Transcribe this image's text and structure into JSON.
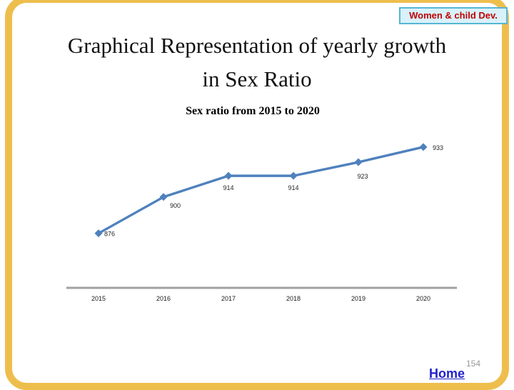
{
  "badge": {
    "label": "Women & child Dev."
  },
  "title": {
    "line1": "Graphical Representation of yearly growth",
    "line2": "in Sex Ratio"
  },
  "chart_data": {
    "type": "line",
    "title": "Sex ratio from 2015 to 2020",
    "categories": [
      "2015",
      "2016",
      "2017",
      "2018",
      "2019",
      "2020"
    ],
    "series": [
      {
        "name": "Sex ratio",
        "values": [
          876,
          900,
          914,
          914,
          923,
          933
        ]
      }
    ],
    "data_labels": [
      "876",
      "900",
      "914",
      "914",
      "923",
      "933"
    ],
    "xlabel": "",
    "ylabel": "",
    "ylim": [
      840,
      940
    ],
    "grid": false,
    "legend": "none",
    "marker": "diamond",
    "line_color": "#4F81BD",
    "axis_color": "#A0A0A0",
    "label_color": "#262626"
  },
  "footer": {
    "home_label": "Home",
    "page_number": "154"
  },
  "colors": {
    "frame": "#EEBE4D",
    "badge_bg": "#D9F1FB",
    "badge_border": "#55B7D4",
    "badge_text": "#C00000",
    "link": "#2121CC",
    "page_number_gray": "#999999"
  }
}
